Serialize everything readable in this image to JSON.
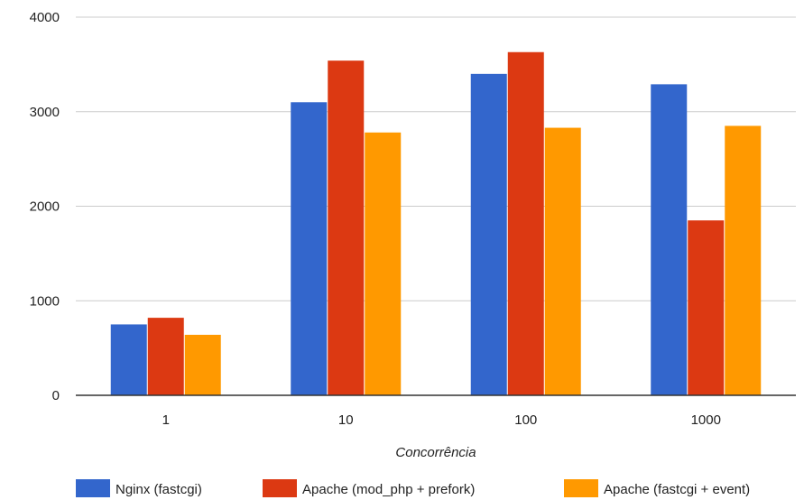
{
  "chart_data": {
    "type": "bar",
    "title": "",
    "xlabel": "Concorrência",
    "ylabel": "",
    "categories": [
      "1",
      "10",
      "100",
      "1000"
    ],
    "yticks": [
      "0",
      "1000",
      "2000",
      "3000",
      "4000"
    ],
    "ylim": [
      0,
      4000
    ],
    "grid": true,
    "legend_position": "bottom",
    "series": [
      {
        "name": "Nginx (fastcgi)",
        "color": "#3366cc",
        "values": [
          750,
          3100,
          3400,
          3290
        ]
      },
      {
        "name": "Apache (mod_php + prefork)",
        "color": "#dc3912",
        "values": [
          820,
          3540,
          3630,
          1850
        ]
      },
      {
        "name": "Apache (fastcgi + event)",
        "color": "#ff9900",
        "values": [
          640,
          2780,
          2830,
          2850
        ]
      }
    ]
  }
}
